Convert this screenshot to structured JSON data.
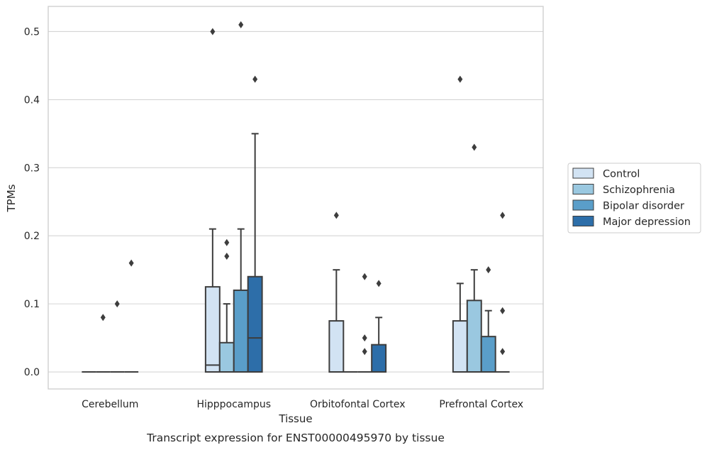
{
  "caption": "Transcript expression for ENST00000495970 by tissue",
  "chart_data": {
    "type": "box",
    "xlabel": "Tissue",
    "ylabel": "TPMs",
    "ylim": [
      -0.025,
      0.537
    ],
    "yticks": [
      "0.0",
      "0.1",
      "0.2",
      "0.3",
      "0.4",
      "0.5"
    ],
    "grid": true,
    "legend_position": "right",
    "categories": [
      "Cerebellum",
      "Hipppocampus",
      "Orbitofontal Cortex",
      "Prefrontal Cortex"
    ],
    "series": [
      {
        "name": "Control",
        "color": "#d2e3f3",
        "boxes": [
          {
            "category": "Cerebellum",
            "q1": 0,
            "median": 0,
            "q3": 0,
            "whisker_low": 0,
            "whisker_high": 0,
            "outliers": []
          },
          {
            "category": "Hipppocampus",
            "q1": 0,
            "median": 0.01,
            "q3": 0.125,
            "whisker_low": 0,
            "whisker_high": 0.21,
            "outliers": [
              0.5
            ]
          },
          {
            "category": "Orbitofontal Cortex",
            "q1": 0,
            "median": 0,
            "q3": 0.075,
            "whisker_low": 0,
            "whisker_high": 0.15,
            "outliers": [
              0.23
            ]
          },
          {
            "category": "Prefrontal Cortex",
            "q1": 0,
            "median": 0,
            "q3": 0.075,
            "whisker_low": 0,
            "whisker_high": 0.13,
            "outliers": [
              0.43
            ]
          }
        ]
      },
      {
        "name": "Schizophrenia",
        "color": "#9ac8e0",
        "boxes": [
          {
            "category": "Cerebellum",
            "q1": 0,
            "median": 0,
            "q3": 0,
            "whisker_low": 0,
            "whisker_high": 0,
            "outliers": [
              0.08
            ]
          },
          {
            "category": "Hipppocampus",
            "q1": 0,
            "median": 0,
            "q3": 0.043,
            "whisker_low": 0,
            "whisker_high": 0.1,
            "outliers": [
              0.17,
              0.19
            ]
          },
          {
            "category": "Orbitofontal Cortex",
            "q1": 0,
            "median": 0,
            "q3": 0,
            "whisker_low": 0,
            "whisker_high": 0,
            "outliers": []
          },
          {
            "category": "Prefrontal Cortex",
            "q1": 0,
            "median": 0,
            "q3": 0.105,
            "whisker_low": 0,
            "whisker_high": 0.15,
            "outliers": [
              0.33
            ]
          }
        ]
      },
      {
        "name": "Bipolar disorder",
        "color": "#5a9ec9",
        "boxes": [
          {
            "category": "Cerebellum",
            "q1": 0,
            "median": 0,
            "q3": 0,
            "whisker_low": 0,
            "whisker_high": 0,
            "outliers": [
              0.1
            ]
          },
          {
            "category": "Hipppocampus",
            "q1": 0,
            "median": 0,
            "q3": 0.12,
            "whisker_low": 0,
            "whisker_high": 0.21,
            "outliers": [
              0.51
            ]
          },
          {
            "category": "Orbitofontal Cortex",
            "q1": 0,
            "median": 0,
            "q3": 0,
            "whisker_low": 0,
            "whisker_high": 0,
            "outliers": [
              0.14,
              0.05,
              0.03
            ]
          },
          {
            "category": "Prefrontal Cortex",
            "q1": 0,
            "median": 0,
            "q3": 0.052,
            "whisker_low": 0,
            "whisker_high": 0.09,
            "outliers": [
              0.15
            ]
          }
        ]
      },
      {
        "name": "Major depression",
        "color": "#2d6ea9",
        "boxes": [
          {
            "category": "Cerebellum",
            "q1": 0,
            "median": 0,
            "q3": 0,
            "whisker_low": 0,
            "whisker_high": 0,
            "outliers": [
              0.16
            ]
          },
          {
            "category": "Hipppocampus",
            "q1": 0,
            "median": 0.05,
            "q3": 0.14,
            "whisker_low": 0,
            "whisker_high": 0.35,
            "outliers": [
              0.43
            ]
          },
          {
            "category": "Orbitofontal Cortex",
            "q1": 0,
            "median": 0,
            "q3": 0.04,
            "whisker_low": 0,
            "whisker_high": 0.08,
            "outliers": [
              0.13
            ]
          },
          {
            "category": "Prefrontal Cortex",
            "q1": 0,
            "median": 0,
            "q3": 0,
            "whisker_low": 0,
            "whisker_high": 0,
            "outliers": [
              0.23,
              0.09,
              0.03
            ]
          }
        ]
      }
    ]
  }
}
